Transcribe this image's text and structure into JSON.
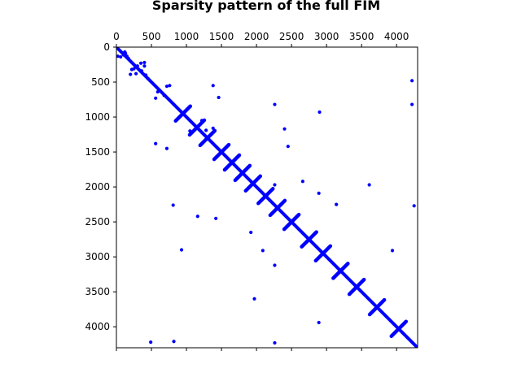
{
  "chart_data": {
    "type": "scatter",
    "title": "Sparsity pattern of the full FIM",
    "xlabel": "",
    "ylabel": "",
    "xlim": [
      0,
      4300
    ],
    "ylim": [
      4300,
      0
    ],
    "x_axis_position": "top",
    "x_ticks": [
      0,
      500,
      1000,
      1500,
      2000,
      2500,
      3000,
      3500,
      4000
    ],
    "y_ticks": [
      0,
      500,
      1000,
      1500,
      2000,
      2500,
      3000,
      3500,
      4000
    ],
    "x_tick_labels": [
      "0",
      "500",
      "1000",
      "1500",
      "2000",
      "2500",
      "3000",
      "3500",
      "4000"
    ],
    "y_tick_labels": [
      "0",
      "500",
      "1000",
      "1500",
      "2000",
      "2500",
      "3000",
      "3500",
      "4000"
    ],
    "marker_color": "#0000ff",
    "grid": false,
    "diagonal": {
      "from": 0,
      "to": 4300
    },
    "block_crosses": [
      [
        950,
        950
      ],
      [
        1150,
        1150
      ],
      [
        1300,
        1300
      ],
      [
        1500,
        1500
      ],
      [
        1650,
        1650
      ],
      [
        1800,
        1800
      ],
      [
        1950,
        1950
      ],
      [
        2130,
        2130
      ],
      [
        2300,
        2300
      ],
      [
        2500,
        2500
      ],
      [
        2750,
        2750
      ],
      [
        2950,
        2950
      ],
      [
        3200,
        3200
      ],
      [
        3430,
        3430
      ],
      [
        3720,
        3720
      ],
      [
        4030,
        4030
      ]
    ],
    "points": [
      [
        20,
        130
      ],
      [
        60,
        140
      ],
      [
        100,
        110
      ],
      [
        120,
        70
      ],
      [
        130,
        90
      ],
      [
        150,
        130
      ],
      [
        170,
        160
      ],
      [
        200,
        390
      ],
      [
        220,
        320
      ],
      [
        250,
        310
      ],
      [
        280,
        380
      ],
      [
        300,
        270
      ],
      [
        350,
        230
      ],
      [
        360,
        340
      ],
      [
        400,
        220
      ],
      [
        400,
        270
      ],
      [
        420,
        400
      ],
      [
        450,
        450
      ],
      [
        480,
        480
      ],
      [
        560,
        730
      ],
      [
        590,
        640
      ],
      [
        620,
        620
      ],
      [
        680,
        690
      ],
      [
        720,
        560
      ],
      [
        760,
        550
      ],
      [
        1380,
        550
      ],
      [
        1460,
        720
      ],
      [
        560,
        1380
      ],
      [
        720,
        1450
      ],
      [
        1050,
        1200
      ],
      [
        1220,
        1050
      ],
      [
        1280,
        1190
      ],
      [
        1380,
        1160
      ],
      [
        2260,
        820
      ],
      [
        2400,
        1170
      ],
      [
        2450,
        1420
      ],
      [
        2900,
        930
      ],
      [
        4220,
        480
      ],
      [
        4220,
        820
      ],
      [
        2260,
        1970
      ],
      [
        2660,
        1920
      ],
      [
        2890,
        2090
      ],
      [
        3140,
        2250
      ],
      [
        3610,
        1970
      ],
      [
        4250,
        2270
      ],
      [
        810,
        2260
      ],
      [
        1160,
        2420
      ],
      [
        1420,
        2450
      ],
      [
        1920,
        2650
      ],
      [
        2090,
        2910
      ],
      [
        2260,
        3120
      ],
      [
        930,
        2900
      ],
      [
        3940,
        2910
      ],
      [
        1970,
        3600
      ],
      [
        2890,
        3940
      ],
      [
        490,
        4220
      ],
      [
        820,
        4210
      ],
      [
        2260,
        4230
      ]
    ]
  }
}
